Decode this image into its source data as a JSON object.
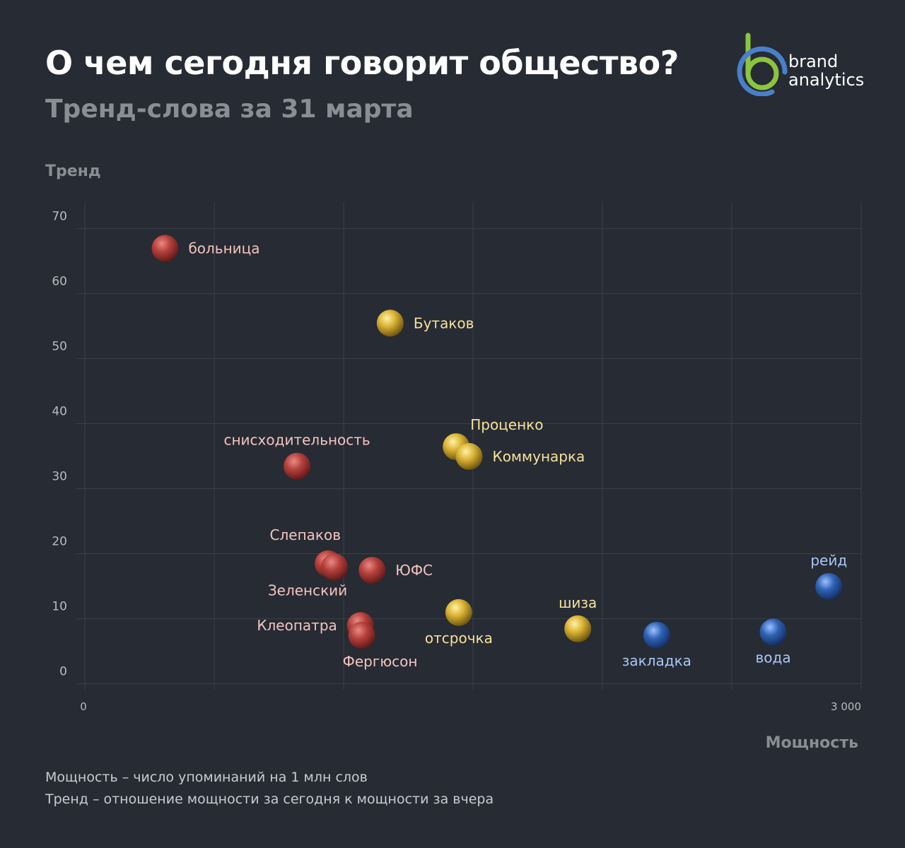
{
  "header": {
    "title": "О чем сегодня говорит общество?",
    "subtitle": "Тренд-слова за 31 марта"
  },
  "logo": {
    "line1": "brand",
    "line2": "analytics",
    "colors": {
      "green": "#8bc53f",
      "blue": "#4a7fc9"
    }
  },
  "footnotes": {
    "power": "Мощность – число упоминаний на 1 млн слов",
    "trend": "Тренд – отношение мощности за сегодня к мощности за вчера"
  },
  "colors": {
    "red": "#b5403c",
    "yellow": "#d9b233",
    "blue": "#2f63b5",
    "red_label": "#f3c4c0",
    "yellow_label": "#f6e29c",
    "blue_label": "#a9c7f5"
  },
  "chart_data": {
    "type": "scatter",
    "title": "О чем сегодня говорит общество?",
    "subtitle": "Тренд-слова за 31 марта",
    "xlabel": "Мощность",
    "ylabel": "Тренд",
    "xlim": [
      0,
      3000
    ],
    "ylim": [
      -2,
      72
    ],
    "x_tick_labels": [
      "0",
      "3 000"
    ],
    "x_tick_values": [
      0,
      3000
    ],
    "y_ticks": [
      0,
      10,
      20,
      30,
      40,
      50,
      60,
      70
    ],
    "grid": true,
    "points": [
      {
        "label": "больница",
        "x": 310,
        "y": 65,
        "color": "red",
        "label_pos": "right"
      },
      {
        "label": "Бутаков",
        "x": 1180,
        "y": 53.5,
        "color": "yellow",
        "label_pos": "right"
      },
      {
        "label": "Проценко",
        "x": 1435,
        "y": 34.5,
        "color": "yellow",
        "label_pos": "above-right"
      },
      {
        "label": "Коммунарка",
        "x": 1485,
        "y": 33,
        "color": "yellow",
        "label_pos": "right"
      },
      {
        "label": "снисходительность",
        "x": 820,
        "y": 31.5,
        "color": "red",
        "label_pos": "above"
      },
      {
        "label": "Слепаков",
        "x": 940,
        "y": 16.5,
        "color": "red",
        "label_pos": "above-left"
      },
      {
        "label": "Зеленский",
        "x": 965,
        "y": 16,
        "color": "red",
        "label_pos": "below-left"
      },
      {
        "label": "ЮФС",
        "x": 1110,
        "y": 15.5,
        "color": "red",
        "label_pos": "right"
      },
      {
        "label": "Клеопатра",
        "x": 1065,
        "y": 7,
        "color": "red",
        "label_pos": "left"
      },
      {
        "label": "Фергюсон",
        "x": 1070,
        "y": 5.5,
        "color": "red",
        "label_pos": "below-right"
      },
      {
        "label": "отсрочка",
        "x": 1445,
        "y": 9,
        "color": "yellow",
        "label_pos": "below"
      },
      {
        "label": "шиза",
        "x": 1905,
        "y": 6.5,
        "color": "yellow",
        "label_pos": "above"
      },
      {
        "label": "закладка",
        "x": 2210,
        "y": 5.5,
        "color": "blue",
        "label_pos": "below"
      },
      {
        "label": "вода",
        "x": 2660,
        "y": 6,
        "color": "blue",
        "label_pos": "below"
      },
      {
        "label": "рейд",
        "x": 2875,
        "y": 13,
        "color": "blue",
        "label_pos": "above"
      }
    ]
  }
}
